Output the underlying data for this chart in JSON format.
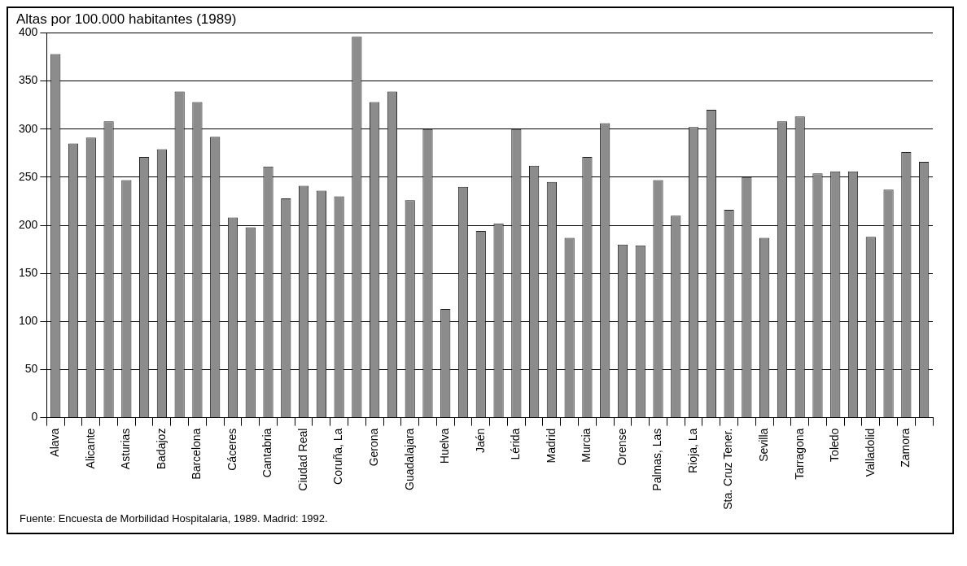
{
  "chart_data": {
    "type": "bar",
    "title": "Altas por 100.000 habitantes (1989)",
    "categories": [
      "Alava",
      null,
      "Alicante",
      null,
      "Asturias",
      null,
      "Badajoz",
      null,
      "Barcelona",
      null,
      "Cáceres",
      null,
      "Cantabria",
      null,
      "Ciudad Real",
      null,
      "Coruña, La",
      null,
      "Gerona",
      null,
      "Guadalajara",
      null,
      "Huelva",
      null,
      "Jaén",
      null,
      "Lérida",
      null,
      "Madrid",
      null,
      "Murcia",
      null,
      "Orense",
      null,
      "Palmas, Las",
      null,
      "Rioja, La",
      null,
      "Sta. Cruz Tener.",
      null,
      "Sevilla",
      null,
      "Tarragona",
      null,
      "Toledo",
      null,
      "Valladolid",
      null,
      "Zamora",
      null
    ],
    "values": [
      378,
      285,
      291,
      308,
      247,
      271,
      279,
      339,
      328,
      292,
      208,
      198,
      261,
      228,
      241,
      236,
      230,
      396,
      328,
      339,
      226,
      300,
      113,
      240,
      194,
      202,
      300,
      262,
      245,
      187,
      271,
      306,
      180,
      179,
      247,
      210,
      302,
      320,
      216,
      250,
      187,
      308,
      313,
      254,
      256,
      256,
      188,
      237,
      276,
      266
    ],
    "color": "#8c8c8c",
    "ylim": [
      0,
      400
    ],
    "yticks": [
      0,
      50,
      100,
      150,
      200,
      250,
      300,
      350,
      400
    ],
    "grid": "y",
    "annotations": [
      "Fuente: Encuesta de Morbilidad Hospitalaria, 1989. Madrid: 1992."
    ]
  }
}
